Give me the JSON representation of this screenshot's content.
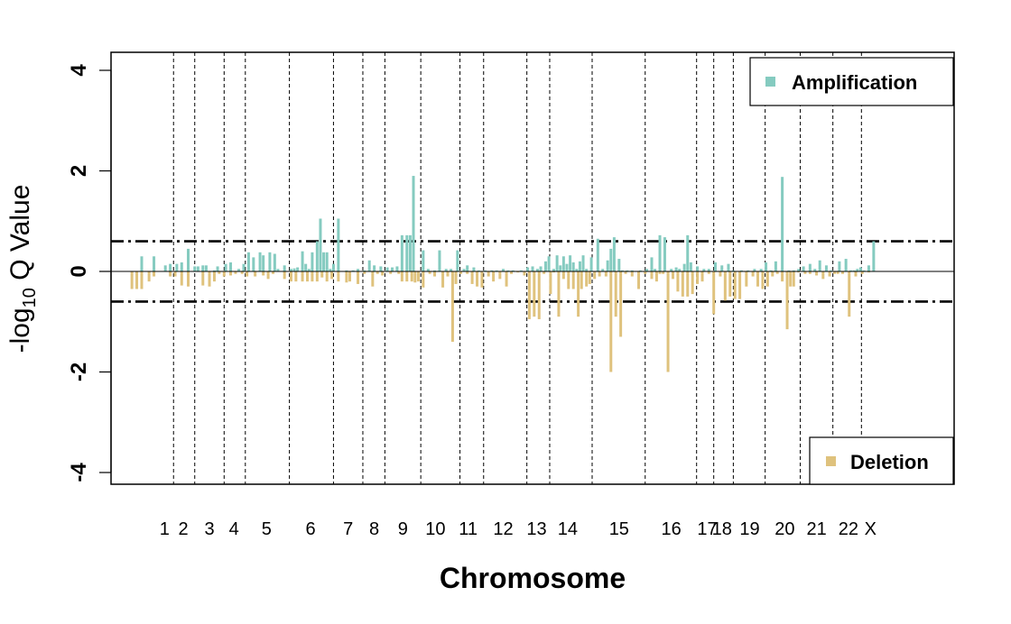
{
  "chart_data": {
    "type": "bar",
    "xlabel": "Chromosome",
    "ylabel": "-log10 Q Value",
    "ylabel_parts": {
      "prefix": "-log",
      "sub": "10",
      "suffix": " Q Value"
    },
    "ylim": [
      -4,
      4
    ],
    "yticks": [
      -4,
      -2,
      0,
      2,
      4
    ],
    "yticks_labels": [
      "-4",
      "-2",
      "0",
      "2",
      "4"
    ],
    "x_range": [
      0,
      100
    ],
    "threshold": 0.6,
    "grid": false,
    "colors": {
      "amplification": "#85CBC0",
      "deletion": "#DFC27D"
    },
    "legend": [
      {
        "name": "Amplification",
        "placement": "top-right"
      },
      {
        "name": "Deletion",
        "placement": "bottom-right"
      }
    ],
    "chromosomes": [
      {
        "label": "1",
        "center": 4.9,
        "end": 6.0
      },
      {
        "label": "2",
        "center": 7.2,
        "end": 8.6
      },
      {
        "label": "3",
        "center": 10.4,
        "end": 12.2
      },
      {
        "label": "4",
        "center": 13.4,
        "end": 14.8
      },
      {
        "label": "5",
        "center": 17.4,
        "end": 20.2
      },
      {
        "label": "6",
        "center": 22.8,
        "end": 25.6
      },
      {
        "label": "7",
        "center": 27.4,
        "end": 29.2
      },
      {
        "label": "8",
        "center": 30.6,
        "end": 31.9
      },
      {
        "label": "9",
        "center": 34.1,
        "end": 36.3
      },
      {
        "label": "10",
        "center": 38.1,
        "end": 41.1
      },
      {
        "label": "11",
        "center": 42.1,
        "end": 44.0
      },
      {
        "label": "12",
        "center": 46.4,
        "end": 49.3
      },
      {
        "label": "13",
        "center": 50.5,
        "end": 52.1
      },
      {
        "label": "14",
        "center": 54.3,
        "end": 57.3
      },
      {
        "label": "15",
        "center": 60.6,
        "end": 63.8
      },
      {
        "label": "16",
        "center": 67.0,
        "end": 70.1
      },
      {
        "label": "17",
        "center": 71.4,
        "end": 72.2
      },
      {
        "label": "18",
        "center": 73.2,
        "end": 74.6
      },
      {
        "label": "19",
        "center": 76.6,
        "end": 78.5
      },
      {
        "label": "20",
        "center": 80.9,
        "end": 82.8
      },
      {
        "label": "21",
        "center": 84.8,
        "end": 86.8
      },
      {
        "label": "22",
        "center": 88.7,
        "end": 90.3
      },
      {
        "label": "X",
        "center": 91.4,
        "end": 100
      }
    ],
    "series": [
      {
        "name": "Amplification",
        "x": [
          2.1,
          3.6,
          5.0,
          5.6,
          6.4,
          7.0,
          7.8,
          8.6,
          9.0,
          9.6,
          10.0,
          11.0,
          11.4,
          12.4,
          13.0,
          14.0,
          14.6,
          15.2,
          15.8,
          16.6,
          17.0,
          17.8,
          18.4,
          18.8,
          19.6,
          20.4,
          20.8,
          21.2,
          21.8,
          22.2,
          22.6,
          23.0,
          23.6,
          24.0,
          24.4,
          24.8,
          25.2,
          25.6,
          26.2,
          27.2,
          28.0,
          28.6,
          29.4,
          30.0,
          30.6,
          31.4,
          32.2,
          32.8,
          33.4,
          34.0,
          34.6,
          35.0,
          35.4,
          36.6,
          37.2,
          38.0,
          38.6,
          39.4,
          40.0,
          40.8,
          41.6,
          42.0,
          42.8,
          43.4,
          44.2,
          45.0,
          45.6,
          46.4,
          47.0,
          47.6,
          48.6,
          49.4,
          50.0,
          50.6,
          51.0,
          51.6,
          52.0,
          52.6,
          53.0,
          53.4,
          53.8,
          54.2,
          54.6,
          55.0,
          55.4,
          55.8,
          56.2,
          56.6,
          57.2,
          58.0,
          58.6,
          59.2,
          59.6,
          60.0,
          60.6,
          61.0,
          61.6,
          62.2,
          63.2,
          64.0,
          64.6,
          65.0,
          65.6,
          66.2,
          67.0,
          67.6,
          68.0,
          68.6,
          69.0,
          69.4,
          70.2,
          71.0,
          71.6,
          72.4,
          73.2,
          74.0,
          74.6,
          75.6,
          76.4,
          77.2,
          78.0,
          78.6,
          79.2,
          79.8,
          80.6,
          81.4,
          82.0,
          82.6,
          83.2,
          84.0,
          84.6,
          85.2,
          86.0,
          86.6,
          87.6,
          88.4,
          89.0,
          89.4,
          89.8,
          90.2,
          90.6,
          91.2,
          91.8
        ],
        "values": [
          0.3,
          0.3,
          0.12,
          0.15,
          0.15,
          0.18,
          0.45,
          0.1,
          0.1,
          0.12,
          0.12,
          0.02,
          0.1,
          0.15,
          0.18,
          0.05,
          0.15,
          0.38,
          0.28,
          0.38,
          0.32,
          0.38,
          0.35,
          0.05,
          0.12,
          0.05,
          0.06,
          0.08,
          0.4,
          0.15,
          0.05,
          0.38,
          0.6,
          1.05,
          0.38,
          0.38,
          0.05,
          0.15,
          1.05,
          0.02,
          0.02,
          0.05,
          0.02,
          0.22,
          0.12,
          0.1,
          0.08,
          0.08,
          0.1,
          0.72,
          0.72,
          0.72,
          1.9,
          0.42,
          0.05,
          0.02,
          0.42,
          0.05,
          0.05,
          0.42,
          0.05,
          0.12,
          0.08,
          0.02,
          0.02,
          0.02,
          0.02,
          0.05,
          0.02,
          0.02,
          0.02,
          0.08,
          0.1,
          0.05,
          0.1,
          0.2,
          0.3,
          0.05,
          0.32,
          0.12,
          0.3,
          0.15,
          0.32,
          0.18,
          0.05,
          0.2,
          0.32,
          0.05,
          0.28,
          0.65,
          0.05,
          0.22,
          0.45,
          0.68,
          0.25,
          0.02,
          0.02,
          0.02,
          0.02,
          0.05,
          0.28,
          0.05,
          0.72,
          0.68,
          0.05,
          0.08,
          0.05,
          0.15,
          0.72,
          0.18,
          0.1,
          0.05,
          0.05,
          0.18,
          0.12,
          0.15,
          0.02,
          0.02,
          0.02,
          0.05,
          0.05,
          0.18,
          0.02,
          0.2,
          1.88,
          0.02,
          0.02,
          0.05,
          0.1,
          0.15,
          0.05,
          0.22,
          0.12,
          0.02,
          0.2,
          0.25,
          0.02,
          0.02,
          0.05,
          0.08,
          0.02,
          0.12,
          0.6
        ]
      },
      {
        "name": "Deletion",
        "x": [
          0.9,
          1.5,
          2.1,
          3.0,
          3.6,
          5.6,
          6.2,
          7.0,
          7.8,
          9.6,
          10.4,
          11.0,
          11.6,
          12.2,
          13.0,
          13.6,
          14.4,
          15.0,
          16.0,
          17.0,
          17.6,
          18.2,
          19.6,
          20.4,
          21.0,
          21.8,
          22.4,
          23.0,
          23.6,
          24.2,
          24.8,
          25.4,
          26.2,
          27.2,
          27.6,
          28.6,
          29.4,
          30.4,
          31.0,
          31.6,
          32.6,
          33.6,
          34.0,
          34.6,
          35.2,
          35.6,
          36.0,
          36.6,
          37.4,
          38.0,
          39.0,
          39.6,
          40.2,
          40.6,
          41.2,
          42.0,
          42.6,
          43.2,
          43.8,
          44.6,
          45.2,
          46.0,
          46.8,
          47.4,
          48.2,
          49.0,
          49.6,
          50.2,
          50.8,
          51.4,
          52.2,
          52.6,
          53.2,
          53.8,
          54.4,
          55.0,
          55.6,
          56.0,
          56.6,
          57.0,
          57.6,
          58.2,
          59.0,
          59.6,
          60.2,
          60.8,
          61.4,
          62.2,
          63.0,
          63.8,
          64.6,
          65.2,
          65.6,
          66.0,
          66.6,
          67.2,
          67.8,
          68.4,
          69.0,
          69.6,
          70.2,
          70.8,
          71.6,
          72.2,
          73.0,
          73.6,
          74.2,
          74.8,
          75.4,
          76.2,
          77.0,
          77.6,
          78.2,
          78.8,
          79.4,
          80.0,
          80.6,
          81.2,
          81.6,
          82.0,
          82.6,
          83.4,
          84.0,
          84.8,
          85.6,
          86.4,
          87.0,
          87.4,
          88.0,
          88.8,
          89.6,
          90.4,
          91.2
        ],
        "values": [
          -0.35,
          -0.35,
          -0.35,
          -0.2,
          -0.1,
          -0.1,
          -0.1,
          -0.28,
          -0.3,
          -0.28,
          -0.3,
          -0.2,
          -0.05,
          -0.1,
          -0.08,
          -0.05,
          -0.05,
          -0.1,
          -0.1,
          -0.08,
          -0.15,
          -0.05,
          -0.15,
          -0.2,
          -0.2,
          -0.2,
          -0.2,
          -0.2,
          -0.2,
          -0.12,
          -0.2,
          -0.15,
          -0.2,
          -0.22,
          -0.2,
          -0.25,
          -0.05,
          -0.3,
          -0.05,
          -0.08,
          -0.05,
          -0.05,
          -0.2,
          -0.2,
          -0.2,
          -0.22,
          -0.2,
          -0.32,
          -0.05,
          -0.1,
          -0.32,
          -0.1,
          -1.4,
          -0.25,
          -0.05,
          -0.05,
          -0.25,
          -0.3,
          -0.32,
          -0.1,
          -0.2,
          -0.15,
          -0.3,
          -0.05,
          -0.02,
          -0.08,
          -0.95,
          -0.9,
          -0.95,
          -0.05,
          -0.45,
          -0.02,
          -0.9,
          -0.15,
          -0.35,
          -0.35,
          -0.9,
          -0.35,
          -0.3,
          -0.25,
          -0.15,
          -0.1,
          -0.1,
          -2.0,
          -0.9,
          -1.3,
          -0.05,
          -0.1,
          -0.35,
          -0.05,
          -0.15,
          -0.2,
          -0.05,
          -0.05,
          -2.0,
          -0.15,
          -0.4,
          -0.5,
          -0.5,
          -0.45,
          -0.25,
          -0.2,
          -0.05,
          -0.85,
          -0.1,
          -0.58,
          -0.5,
          -0.55,
          -0.55,
          -0.3,
          -0.1,
          -0.3,
          -0.35,
          -0.3,
          -0.1,
          -0.05,
          -0.2,
          -1.15,
          -0.3,
          -0.3,
          -0.02,
          -0.05,
          -0.05,
          -0.08,
          -0.15,
          -0.1,
          -0.05,
          -0.05,
          -0.05,
          -0.9,
          -0.1,
          -0.05,
          -0.02
        ]
      }
    ]
  }
}
